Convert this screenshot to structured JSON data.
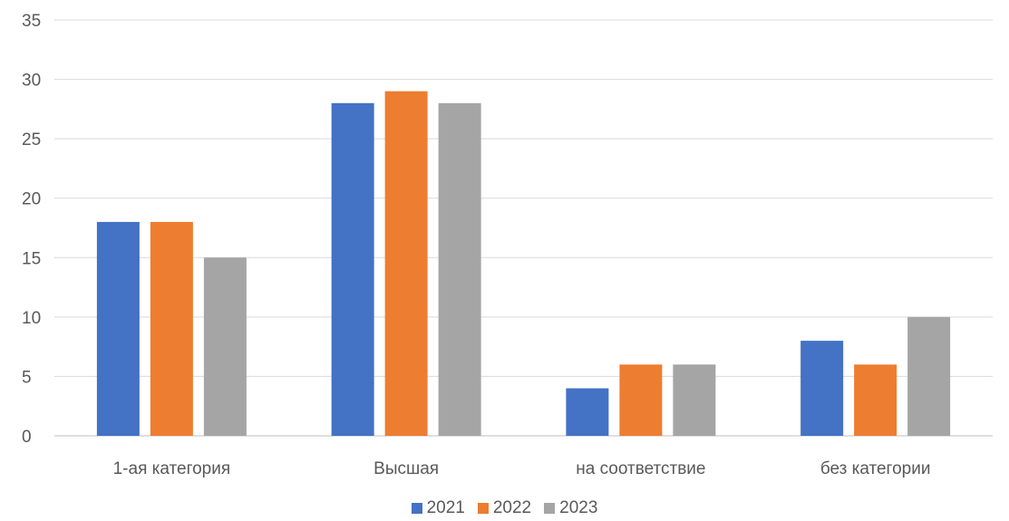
{
  "chart_data": {
    "type": "bar",
    "title": "",
    "xlabel": "",
    "ylabel": "",
    "categories": [
      "1-ая категория",
      "Высшая",
      "на соответствие",
      "без категории"
    ],
    "series": [
      {
        "name": "2021",
        "values": [
          18,
          28,
          4,
          8
        ],
        "color": "#4472C4"
      },
      {
        "name": "2022",
        "values": [
          18,
          29,
          6,
          6
        ],
        "color": "#ED7D31"
      },
      {
        "name": "2023",
        "values": [
          15,
          28,
          6,
          10
        ],
        "color": "#A5A5A5"
      }
    ],
    "ylim": [
      0,
      35
    ],
    "yticks": [
      "0",
      "5",
      "10",
      "15",
      "20",
      "25",
      "30",
      "35"
    ],
    "grid": true,
    "legend_position": "bottom"
  }
}
